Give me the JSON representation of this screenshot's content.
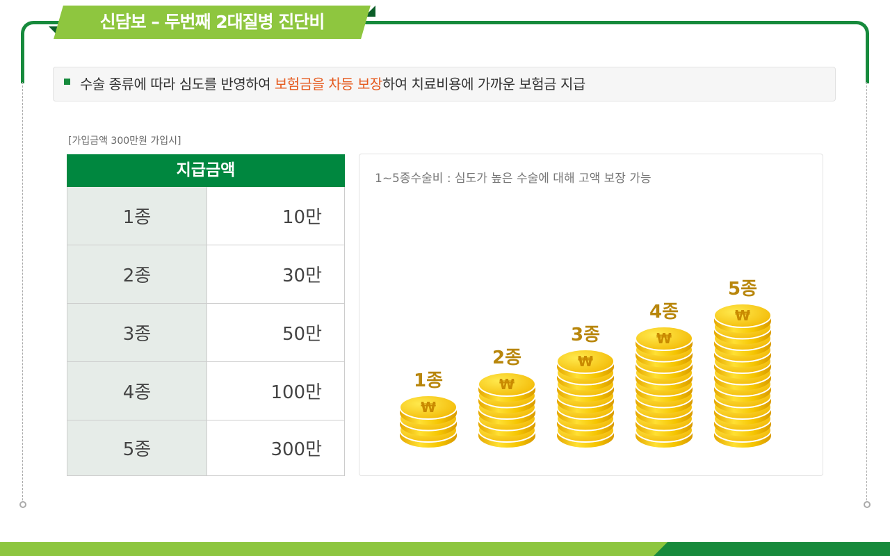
{
  "title": "신담보 – 두번째 2대질병 진단비",
  "notice": {
    "before": "수술 종류에 따라 심도를 반영하여 ",
    "highlight": "보험금을 차등 보장",
    "after": "하여 치료비용에 가까운 보험금 지급"
  },
  "sub_caption": "[가입금액 300만원 가입시]",
  "table": {
    "header": "지급금액",
    "rows": [
      {
        "grade": "1종",
        "amount": "10만"
      },
      {
        "grade": "2종",
        "amount": "30만"
      },
      {
        "grade": "3종",
        "amount": "50만"
      },
      {
        "grade": "4종",
        "amount": "100만"
      },
      {
        "grade": "5종",
        "amount": "300만"
      }
    ]
  },
  "chart": {
    "caption": "1~5종수술비 : 심도가 높은 수술에 대해 고액 보장 가능",
    "coin_symbol": "₩",
    "label_color": "#b8860b"
  },
  "chart_data": {
    "type": "bar",
    "categories": [
      "1종",
      "2종",
      "3종",
      "4종",
      "5종"
    ],
    "values": [
      3,
      5,
      7,
      9,
      11
    ]
  },
  "colors": {
    "brand_green": "#168a3c",
    "light_green": "#8ec63f",
    "highlight_orange": "#e55a1e"
  }
}
